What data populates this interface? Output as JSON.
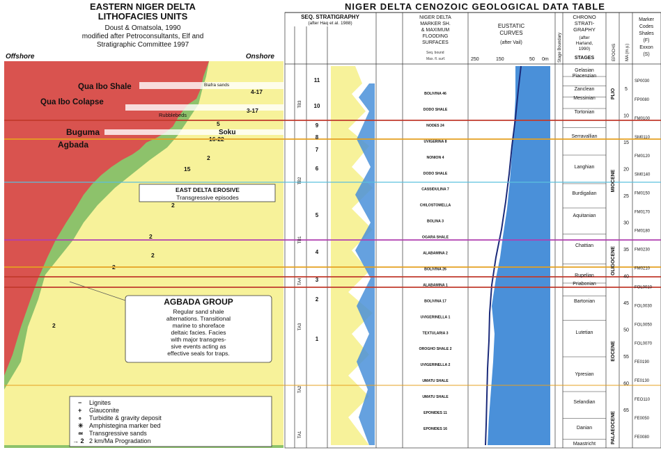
{
  "left_panel": {
    "title_line1": "EASTERN NIGER DELTA",
    "title_line2": "LITHOFACIES UNITS",
    "credit_line1": "Doust & Omatsola, 1990",
    "credit_line2": "modified after Petroconsultants, Elf and",
    "credit_line3": "Stratigraphic Committee 1997",
    "offshore": "Offshore",
    "onshore": "Onshore",
    "labels": {
      "qua_ibo_shale": "Qua Ibo Shale",
      "biafra_sands": "Biafra sands",
      "qua_ibo_colapse": "Qua Ibo Colapse",
      "rubblebeds": "Rubblebeds",
      "buguma": "Buguma",
      "agbada": "Agbada",
      "soku": "Soku",
      "east_delta_title": "EAST DELTA EROSIVE",
      "east_delta_sub": "Transgressive episodes",
      "agbada_group_title": "AGBADA GROUP",
      "agbada_group_desc": [
        "Regular sand shale",
        "alternations. Transitional",
        "marine to shoreface",
        "deltaic facies. Facies",
        "with major transgres-",
        "sive events acting as",
        "effective seals for traps."
      ]
    },
    "rates": [
      "4-17",
      "3-17",
      "5",
      "16-22",
      "2",
      "15",
      "2",
      "2",
      "2",
      "2",
      "2"
    ],
    "legend": [
      {
        "symbol": "−",
        "label": "Lignites"
      },
      {
        "symbol": "+",
        "label": "Glauconite"
      },
      {
        "symbol": "∘",
        "label": "Turbidite & gravity deposit"
      },
      {
        "symbol": "✳",
        "label": "Amphistegina marker bed"
      },
      {
        "symbol": "≃",
        "label": "Transgressive sands"
      },
      {
        "symbol": "→ 2",
        "label": "2 km/Ma Progradation"
      }
    ]
  },
  "right_panel": {
    "title": "NIGER DELTA CENOZOIC GEOLOGICAL DATA TABLE",
    "columns": {
      "seq_strat": "SEQ. STRATIGRAPHY",
      "seq_strat_sub": "(after Haq et al. 1988)",
      "marker": [
        "NIGER DELTA",
        "MARKER SH.",
        "& MAXIMUM",
        "FLOODING",
        "SURFACES"
      ],
      "marker_legend": [
        "Seq. bound",
        "Max. fl. surf."
      ],
      "eustatic": [
        "EUSTATIC",
        "CURVES"
      ],
      "eustatic_sub": "(after Vail)",
      "eustatic_scale": [
        "250",
        "150",
        "50",
        "0m"
      ],
      "chrono": [
        "CHRONO",
        "STRATI-",
        "GRAPHY",
        "(after",
        "Harland,",
        "1990)"
      ],
      "stages_header": "STAGES",
      "epochs_header": "EPOCHS",
      "ma_header": "MA (m.y.)",
      "right_codes": [
        "Marker",
        "Codes",
        "Shales",
        "(F)",
        "Exxon",
        "(S)"
      ],
      "stage_boundary": "Stage Boundary"
    },
    "cycles": [
      "11",
      "10",
      "9",
      "8",
      "7",
      "6",
      "5",
      "4",
      "3",
      "2",
      "1"
    ],
    "sequences": [
      "TB3",
      "TB2",
      "TB1",
      "TA4",
      "TA3",
      "TA2",
      "TA1"
    ],
    "markers": [
      "BOLIVINA 46",
      "DODO SHALE",
      "NODES 24",
      "UVIGERINA 8",
      "NONION 4",
      "DODO SHALE",
      "CASSIDULINA 7",
      "CHILOSTOMELLA",
      "BOLINA 3",
      "OGARA SHALE",
      "ALABAMINA 2",
      "BOLIVINA 26",
      "ALABAMINA 1",
      "BOLIVINA 17",
      "UVIGERINELLA 1",
      "TEXTULARIA 3",
      "OROGHO SHALE 2",
      "UVIGERINELLA 2",
      "UMATU SHALE",
      "UMATU SHALE",
      "EPONIDES 11",
      "EPONIDES 16"
    ],
    "stages": [
      "Gelasian",
      "Piacenzian",
      "Zanclean",
      "Messinian",
      "Tortonian",
      "Serravallian",
      "Langhian",
      "Burdigalian",
      "Aquitanian",
      "Chattian",
      "Rupelian",
      "Priabonian",
      "Bartonian",
      "Lutetian",
      "Ypresian",
      "Selandian",
      "Danian",
      "Maastricht"
    ],
    "epochs": [
      "PLIO",
      "MIOCENE",
      "OLIGOCENE",
      "EOCENE",
      "PALAEOCENE"
    ],
    "ma_ticks": [
      "5",
      "10",
      "15",
      "20",
      "25",
      "30",
      "35",
      "40",
      "45",
      "50",
      "55",
      "60",
      "65"
    ],
    "codes": [
      "SP0030",
      "FP0080",
      "FM0100",
      "SM0110",
      "FM0120",
      "SM0140",
      "FM0150",
      "FM0170",
      "FM0180",
      "FM0230",
      "FM0210",
      "FOL0010",
      "FOL0030",
      "FOL0050",
      "FOL0070",
      "FE0190",
      "FE0130",
      "FEO110",
      "FE0050",
      "FE0080"
    ]
  },
  "colors": {
    "shale": "#d9534f",
    "sand": "#f7f29a",
    "green": "#8dc26b",
    "eustatic_fill": "#4a90d9",
    "curve": "#1a2a7a"
  }
}
